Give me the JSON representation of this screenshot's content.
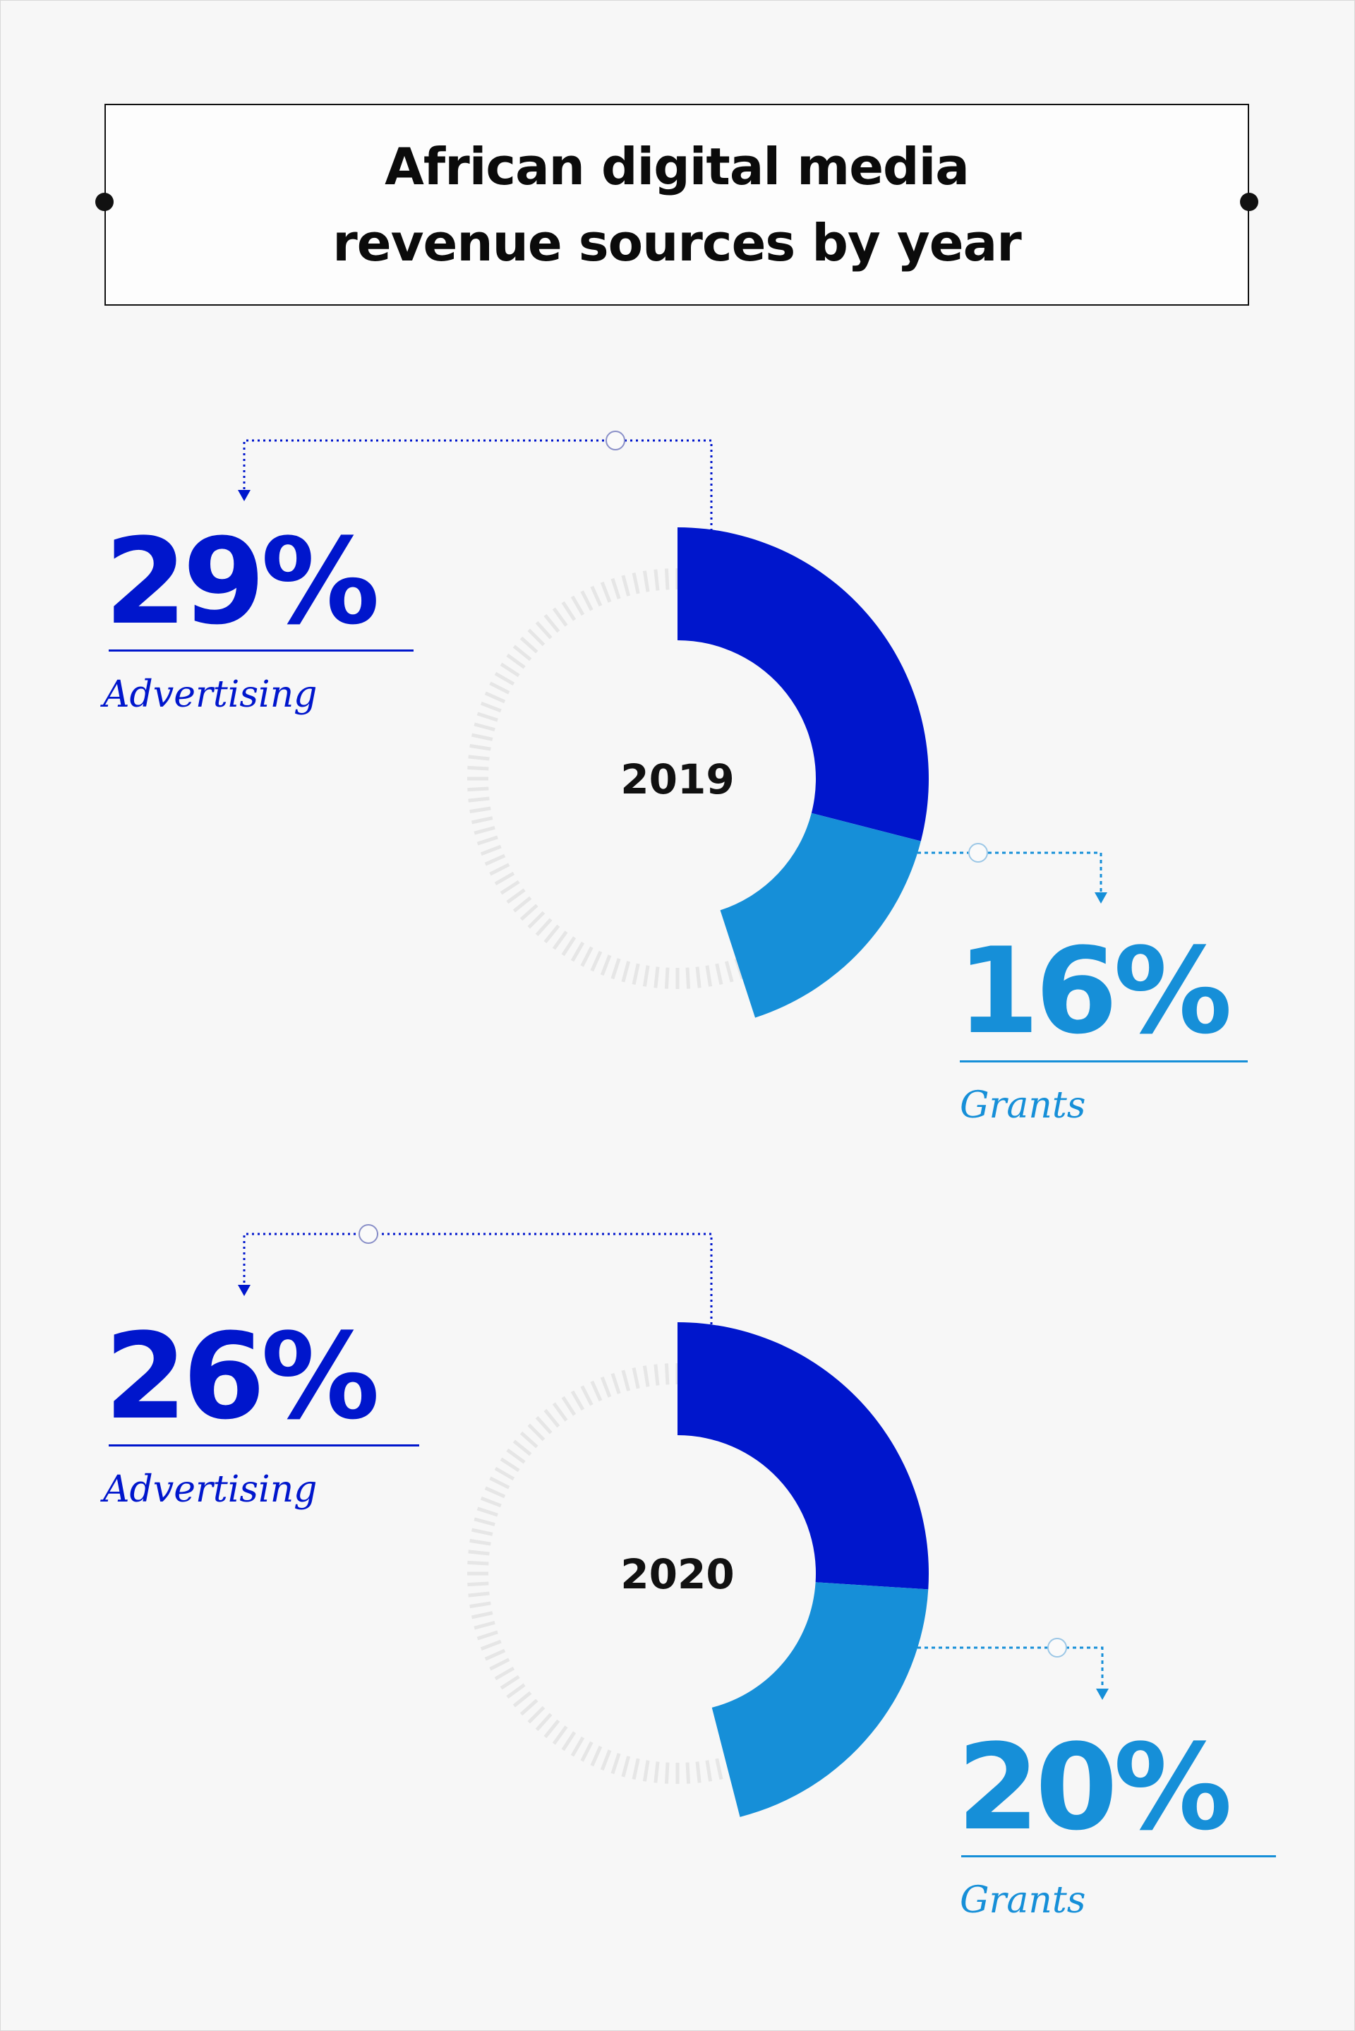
{
  "title": "African digital media revenue sources by year",
  "colors": {
    "advertising": "#0016cc",
    "grants": "#168fd8",
    "track": "#e6e6e6",
    "background": "#f7f7f7"
  },
  "chart_data": [
    {
      "type": "pie",
      "variant": "donut",
      "center_label": "2019",
      "series": [
        {
          "name": "Advertising",
          "value": 29,
          "value_label": "29%"
        },
        {
          "name": "Grants",
          "value": 16,
          "value_label": "16%"
        }
      ]
    },
    {
      "type": "pie",
      "variant": "donut",
      "center_label": "2020",
      "series": [
        {
          "name": "Advertising",
          "value": 26,
          "value_label": "26%"
        },
        {
          "name": "Grants",
          "value": 20,
          "value_label": "20%"
        }
      ]
    }
  ]
}
